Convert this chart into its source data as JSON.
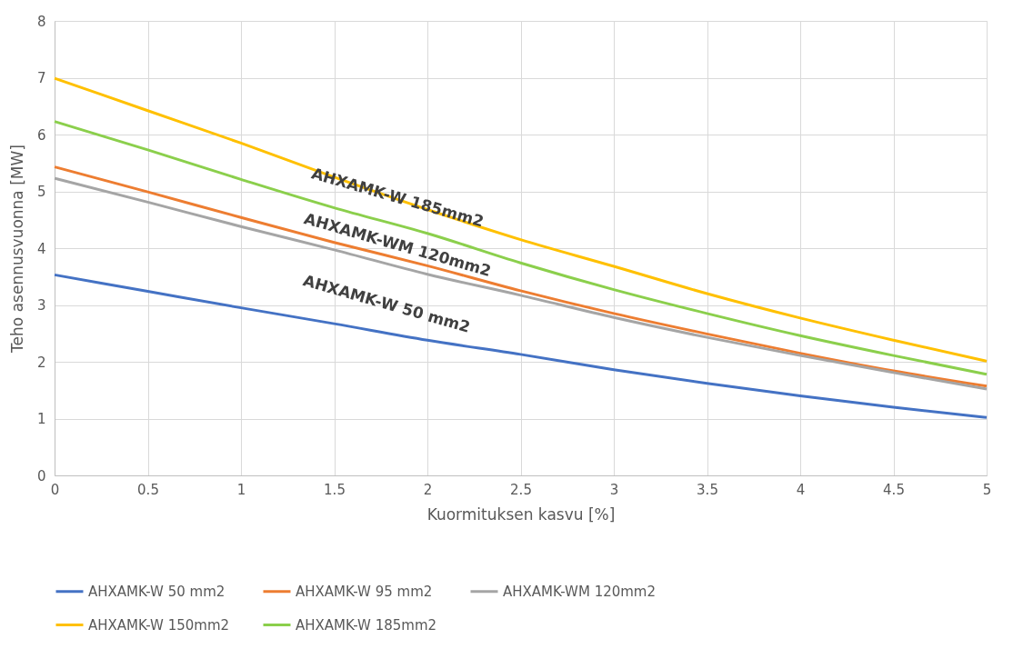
{
  "chart_data": {
    "type": "line",
    "xlabel": "Kuormituksen kasvu [%]",
    "ylabel": "Teho asennusvuonna [MW]",
    "x": [
      0,
      0.5,
      1,
      1.5,
      2,
      2.5,
      3,
      3.5,
      4,
      4.5,
      5
    ],
    "series": [
      {
        "name": "AHXAMK-W 50 mm2",
        "color": "#4472c4",
        "values": [
          3.53,
          3.24,
          2.95,
          2.67,
          2.38,
          2.13,
          1.86,
          1.62,
          1.4,
          1.2,
          1.02
        ]
      },
      {
        "name": "AHXAMK-W 95 mm2",
        "color": "#ed7d31",
        "values": [
          5.43,
          4.99,
          4.54,
          4.1,
          3.69,
          3.25,
          2.85,
          2.49,
          2.15,
          1.84,
          1.57
        ]
      },
      {
        "name": "AHXAMK-WM 120mm2",
        "color": "#a5a5a5",
        "values": [
          5.23,
          4.81,
          4.38,
          3.97,
          3.54,
          3.17,
          2.78,
          2.43,
          2.11,
          1.81,
          1.52
        ]
      },
      {
        "name": "AHXAMK-W 150mm2",
        "color": "#ffc000",
        "values": [
          6.99,
          6.42,
          5.85,
          5.25,
          4.68,
          4.15,
          3.68,
          3.2,
          2.77,
          2.38,
          2.01
        ]
      },
      {
        "name": "AHXAMK-W 185mm2",
        "color": "#8bcf4c",
        "values": [
          6.23,
          5.73,
          5.21,
          4.71,
          4.26,
          3.74,
          3.27,
          2.85,
          2.46,
          2.11,
          1.78
        ]
      }
    ],
    "annotations": [
      "AHXAMK-W 185mm2",
      "AHXAMK-WM 120mm2",
      "AHXAMK-W 50 mm2"
    ],
    "xlim": [
      0,
      5
    ],
    "xticks": [
      0,
      0.5,
      1,
      1.5,
      2,
      2.5,
      3,
      3.5,
      4,
      4.5,
      5
    ],
    "ylim": [
      0,
      8
    ],
    "yticks": [
      0,
      1,
      2,
      3,
      4,
      5,
      6,
      7,
      8
    ],
    "grid": true,
    "legend": "bottom",
    "marker": "none",
    "line_style": "solid"
  }
}
